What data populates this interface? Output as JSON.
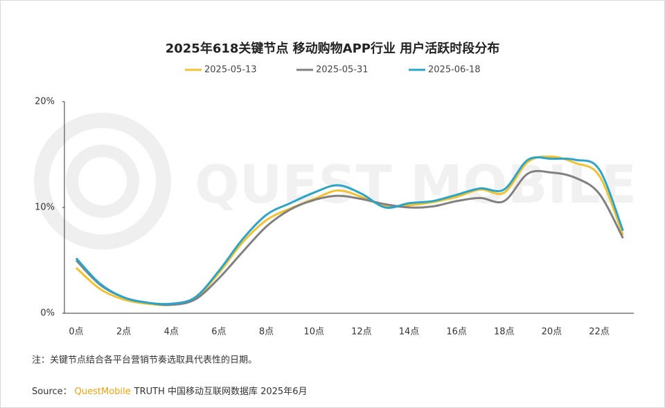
{
  "chart_data": {
    "type": "line",
    "title": "2025年618关键节点 移动购物APP行业 用户活跃时段分布",
    "watermark": "QUEST MOBILE",
    "categories": [
      "0点",
      null,
      "2点",
      null,
      "4点",
      null,
      "6点",
      null,
      "8点",
      null,
      "10点",
      null,
      "12点",
      null,
      "14点",
      null,
      "16点",
      null,
      "18点",
      null,
      "20点",
      null,
      "22点",
      null
    ],
    "series": [
      {
        "name": "2025-05-13",
        "color": "#f2c12e",
        "values": [
          4.3,
          2.3,
          1.3,
          0.9,
          0.8,
          1.4,
          3.8,
          6.7,
          8.8,
          9.9,
          10.8,
          11.6,
          11.0,
          10.1,
          10.2,
          10.5,
          11.0,
          11.7,
          11.4,
          14.3,
          14.8,
          14.2,
          13.0,
          7.4
        ]
      },
      {
        "name": "2025-05-31",
        "color": "#808080",
        "values": [
          5.0,
          2.7,
          1.5,
          1.0,
          0.8,
          1.3,
          3.3,
          5.8,
          8.2,
          9.8,
          10.7,
          11.1,
          10.8,
          10.3,
          10.0,
          10.1,
          10.6,
          10.9,
          10.6,
          13.2,
          13.3,
          12.8,
          11.3,
          7.1
        ]
      },
      {
        "name": "2025-06-18",
        "color": "#2aa4c9",
        "values": [
          5.2,
          2.8,
          1.5,
          1.0,
          0.9,
          1.5,
          4.0,
          7.0,
          9.3,
          10.4,
          11.4,
          12.1,
          11.3,
          10.0,
          10.4,
          10.6,
          11.2,
          11.8,
          11.7,
          14.5,
          14.6,
          14.5,
          13.6,
          7.8
        ]
      }
    ],
    "ylim": [
      0,
      20
    ],
    "yticks": [
      {
        "value": 0,
        "label": "0%"
      },
      {
        "value": 10,
        "label": "10%"
      },
      {
        "value": 20,
        "label": "20%"
      }
    ],
    "grid": false,
    "legend": "top",
    "note": "注：关键节点结合各平台营销节奏选取具代表性的日期。",
    "source": {
      "label": "Source：",
      "brand": "QuestMobile",
      "text": "TRUTH 中国移动互联网数据库 2025年6月"
    }
  }
}
